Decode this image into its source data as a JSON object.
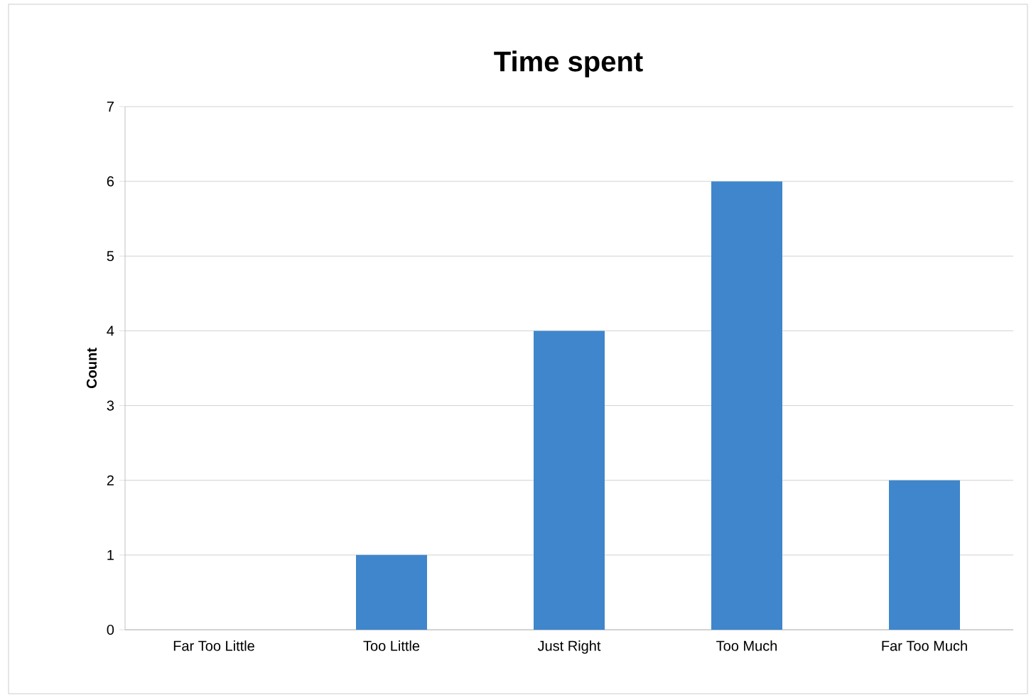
{
  "chart_data": {
    "type": "bar",
    "title": "Time spent",
    "ylabel": "Count",
    "categories": [
      "Far Too Little",
      "Too Little",
      "Just Right",
      "Too Much",
      "Far Too Much"
    ],
    "values": [
      0,
      1,
      4,
      6,
      2
    ],
    "color": "#3f86cc",
    "ylim": [
      0,
      7
    ],
    "yticks": [
      0,
      1,
      2,
      3,
      4,
      5,
      6,
      7
    ],
    "grid": "y"
  }
}
